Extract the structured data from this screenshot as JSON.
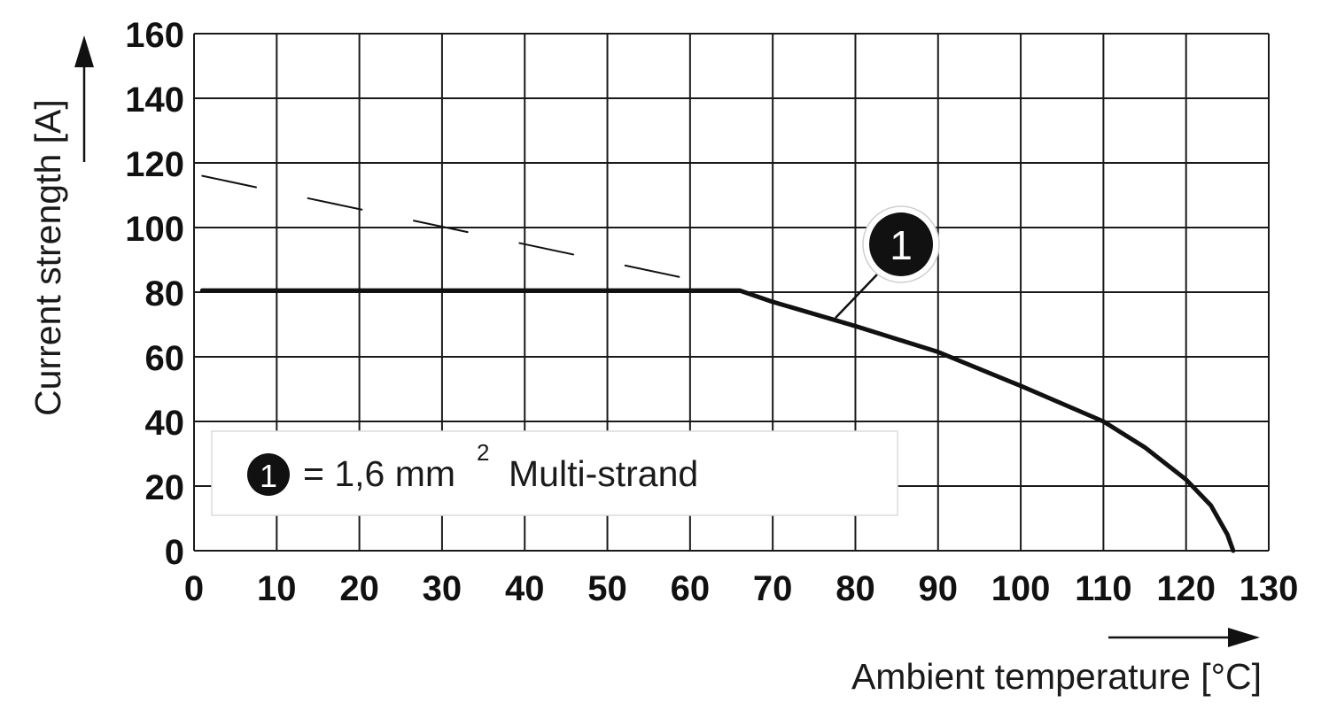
{
  "chart_data": {
    "type": "line",
    "xlabel": "Ambient temperature [°C]",
    "ylabel": "Current strength [A]",
    "xlim": [
      0,
      130
    ],
    "ylim": [
      0,
      160
    ],
    "x_ticks": [
      "0",
      "10",
      "20",
      "30",
      "40",
      "50",
      "60",
      "70",
      "80",
      "90",
      "100",
      "110",
      "120",
      "130"
    ],
    "y_ticks": [
      "0",
      "20",
      "40",
      "60",
      "80",
      "100",
      "120",
      "140",
      "160"
    ],
    "grid": true,
    "series": [
      {
        "marker": "1",
        "style": "solid",
        "x": [
          1,
          66,
          70,
          80,
          90,
          100,
          110,
          115,
          120,
          123,
          125,
          125.7
        ],
        "y": [
          80.5,
          80.5,
          77,
          69.5,
          61.5,
          51,
          40,
          32,
          22,
          14,
          5,
          0
        ]
      },
      {
        "style": "dashed",
        "x": [
          1,
          60
        ],
        "y": [
          116,
          84
        ]
      }
    ],
    "legend": {
      "placement": "bottom-left",
      "marker": "1",
      "text_main": "= 1,6 mm",
      "superscript": "2",
      "text_tail": "Multi-strand"
    },
    "annotation": {
      "marker": "1",
      "at": [
        78,
        71
      ]
    },
    "colors": {
      "line": "#111111",
      "grid": "#1a1a1a",
      "legend_bg": "#ffffff",
      "legend_border": "#dddddd"
    }
  }
}
